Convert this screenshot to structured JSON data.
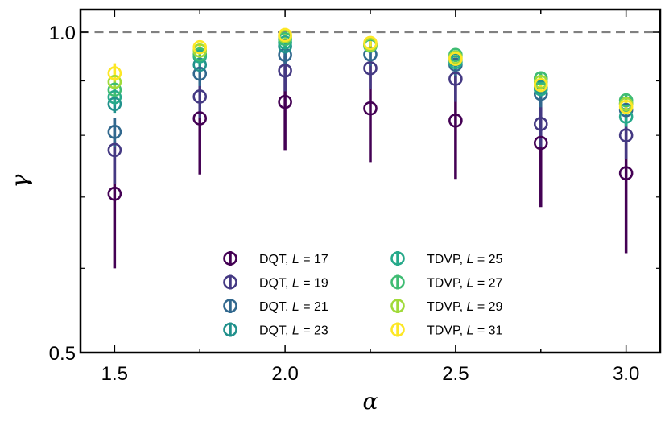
{
  "chart_data": {
    "type": "scatter",
    "xlabel": "α",
    "ylabel": "γ",
    "xlim": [
      1.4,
      3.1
    ],
    "ylim": [
      0.5,
      1.05
    ],
    "y_scale": "log",
    "x_ticks": [
      1.5,
      1.75,
      2.0,
      2.25,
      2.5,
      2.75,
      3.0
    ],
    "x_tick_labels": [
      "1.5",
      "2.0",
      "2.5",
      "3.0"
    ],
    "x_tick_label_values": [
      1.5,
      2.0,
      2.5,
      3.0
    ],
    "y_tick_labels": [
      "0.5",
      "1.0"
    ],
    "y_tick_label_values": [
      0.5,
      1.0
    ],
    "y_minor_ticks": [
      0.6,
      0.7,
      0.8,
      0.9
    ],
    "reference_line": {
      "y": 1.0,
      "style": "dashed",
      "color": "#808080"
    },
    "legend_position": "lower-center",
    "legend_columns": 2,
    "x": [
      1.5,
      1.75,
      2.0,
      2.25,
      2.5,
      2.75,
      3.0
    ],
    "series": [
      {
        "name": "DQT, L = 17",
        "label_prefix": "DQT, ",
        "label_var": "L",
        "label_value": "= 17",
        "color": "#440154",
        "values": [
          0.705,
          0.83,
          0.86,
          0.848,
          0.826,
          0.787,
          0.737
        ],
        "err_low": [
          0.6,
          0.735,
          0.775,
          0.755,
          0.728,
          0.685,
          0.62
        ],
        "err_high": [
          0.79,
          0.9,
          0.95,
          0.935,
          0.91,
          0.865,
          0.82
        ]
      },
      {
        "name": "DQT, L = 19",
        "label_prefix": "DQT, ",
        "label_var": "L",
        "label_value": "= 19",
        "color": "#443983",
        "values": [
          0.775,
          0.87,
          0.92,
          0.925,
          0.904,
          0.82,
          0.8
        ],
        "err_low": [
          0.72,
          0.83,
          0.88,
          0.885,
          0.86,
          0.78,
          0.76
        ],
        "err_high": [
          0.83,
          0.91,
          0.96,
          0.965,
          0.945,
          0.86,
          0.84
        ]
      },
      {
        "name": "DQT, L = 21",
        "label_prefix": "DQT, ",
        "label_var": "L",
        "label_value": "= 21",
        "color": "#31688e",
        "values": [
          0.806,
          0.914,
          0.952,
          0.953,
          0.932,
          0.875,
          0.845
        ],
        "err_low": [
          0.78,
          0.89,
          0.93,
          0.93,
          0.91,
          0.85,
          0.82
        ],
        "err_high": [
          0.83,
          0.935,
          0.975,
          0.975,
          0.955,
          0.9,
          0.87
        ]
      },
      {
        "name": "DQT, L = 23",
        "label_prefix": "DQT, ",
        "label_var": "L",
        "label_value": "= 23",
        "color": "#21918c",
        "values": [
          0.856,
          0.932,
          0.97,
          0.975,
          0.942,
          0.888,
          0.857
        ],
        "err_low": [
          0.84,
          0.92,
          0.955,
          0.965,
          0.93,
          0.875,
          0.845
        ],
        "err_high": [
          0.87,
          0.945,
          0.985,
          0.985,
          0.955,
          0.9,
          0.87
        ]
      },
      {
        "name": "TDVP, L = 25",
        "label_prefix": "TDVP, ",
        "label_var": "L",
        "label_value": "= 25",
        "color": "#26a98a",
        "values": [
          0.869,
          0.949,
          0.978,
          0.971,
          0.937,
          0.884,
          0.833
        ],
        "err_low": [
          0.855,
          0.94,
          0.97,
          0.962,
          0.925,
          0.872,
          0.815
        ],
        "err_high": [
          0.885,
          0.96,
          0.986,
          0.98,
          0.95,
          0.896,
          0.85
        ]
      },
      {
        "name": "TDVP, L = 27",
        "label_prefix": "TDVP, ",
        "label_var": "L",
        "label_value": "= 27",
        "color": "#3fbc73",
        "values": [
          0.883,
          0.953,
          0.985,
          0.972,
          0.952,
          0.905,
          0.863
        ],
        "err_low": [
          0.87,
          0.945,
          0.978,
          0.965,
          0.94,
          0.89,
          0.85
        ],
        "err_high": [
          0.895,
          0.962,
          0.992,
          0.98,
          0.962,
          0.918,
          0.876
        ]
      },
      {
        "name": "TDVP, L = 29",
        "label_prefix": "TDVP, ",
        "label_var": "L",
        "label_value": "= 29",
        "color": "#a0da39",
        "values": [
          0.898,
          0.961,
          0.991,
          0.973,
          0.947,
          0.898,
          0.856
        ],
        "err_low": [
          0.885,
          0.953,
          0.985,
          0.966,
          0.937,
          0.888,
          0.847
        ],
        "err_high": [
          0.91,
          0.968,
          0.997,
          0.98,
          0.958,
          0.908,
          0.865
        ]
      },
      {
        "name": "TDVP, L = 31",
        "label_prefix": "TDVP, ",
        "label_var": "L",
        "label_value": "= 31",
        "color": "#fde725",
        "values": [
          0.915,
          0.968,
          0.994,
          0.977,
          0.944,
          0.892,
          0.851
        ],
        "err_low": [
          0.9,
          0.96,
          0.988,
          0.97,
          0.935,
          0.882,
          0.842
        ],
        "err_high": [
          0.935,
          0.975,
          1.0,
          0.984,
          0.953,
          0.902,
          0.86
        ]
      }
    ]
  }
}
